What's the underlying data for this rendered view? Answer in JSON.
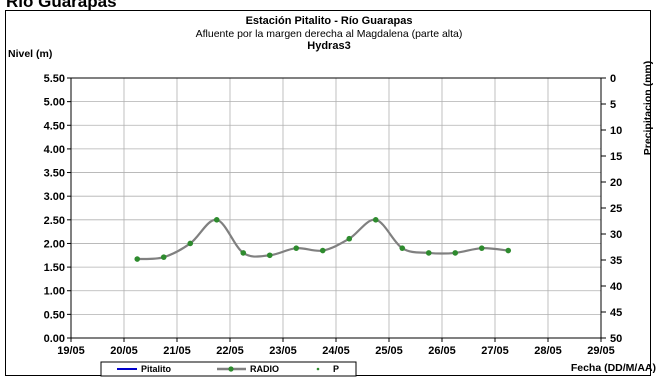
{
  "page": {
    "heading": "Río Guarapas"
  },
  "chart_data": {
    "type": "line",
    "title": "Estación Pitalito  - Río Guarapas",
    "subtitle": "Afluente por la margen derecha al Magdalena (parte alta)",
    "subtitle2": "Hydras3",
    "ylabel": "Nivel (m)",
    "y2label": "Precipitacion (mm)",
    "xlabel": "Fecha (DD/M/AA)",
    "xlim": [
      "19/05",
      "29/05"
    ],
    "ylim": [
      0,
      5.5
    ],
    "y2lim": [
      0,
      50
    ],
    "y2_inverted": true,
    "grid": true,
    "x_ticks": [
      "19/05",
      "20/05",
      "21/05",
      "22/05",
      "23/05",
      "24/05",
      "25/05",
      "26/05",
      "27/05",
      "28/05",
      "29/05"
    ],
    "y_ticks": [
      "0.00",
      "0.50",
      "1.00",
      "1.50",
      "2.00",
      "2.50",
      "3.00",
      "3.50",
      "4.00",
      "4.50",
      "5.00",
      "5.50"
    ],
    "y2_ticks": [
      "0",
      "5",
      "10",
      "15",
      "20",
      "25",
      "30",
      "35",
      "40",
      "45",
      "50"
    ],
    "series": [
      {
        "name": "Pitalito",
        "color": "#0000cc",
        "x": [],
        "values": []
      },
      {
        "name": "RADIO",
        "color": "#808080",
        "marker_color": "#2e8b2e",
        "x": [
          1.25,
          1.75,
          2.25,
          2.75,
          3.25,
          3.75,
          4.25,
          4.75,
          5.25,
          5.75,
          6.25,
          6.75,
          7.25,
          7.75,
          8.25
        ],
        "values": [
          1.67,
          1.71,
          2.0,
          2.5,
          1.8,
          1.75,
          1.9,
          1.85,
          2.1,
          2.5,
          1.9,
          1.8,
          1.8,
          1.9,
          1.85
        ]
      },
      {
        "name": "P",
        "color": "#2e8b2e",
        "x": [],
        "values": []
      }
    ]
  }
}
